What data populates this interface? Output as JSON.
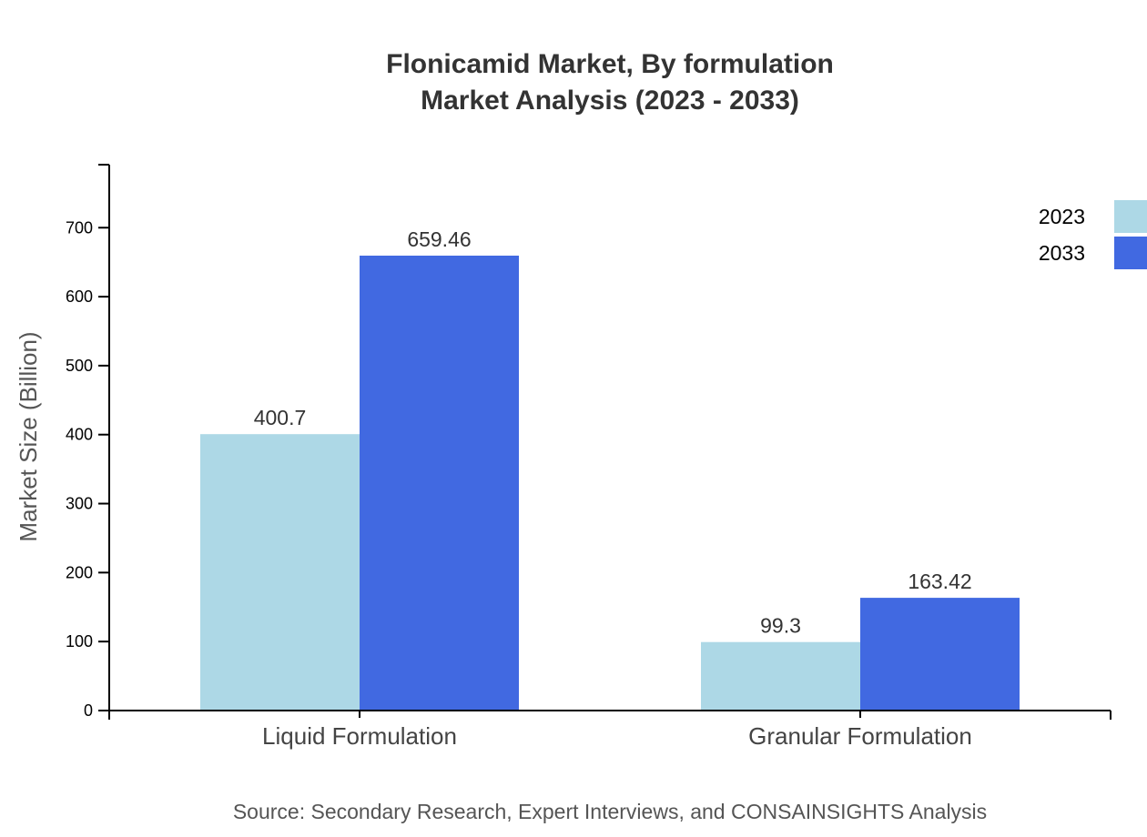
{
  "chart_data": {
    "type": "bar",
    "title": "Flonicamid Market, By formulation",
    "subtitle": "Market Analysis (2023 - 2033)",
    "xlabel": "",
    "ylabel": "Market Size (Billion)",
    "categories": [
      "Liquid Formulation",
      "Granular Formulation"
    ],
    "series": [
      {
        "name": "2023",
        "values": [
          400.7,
          99.3
        ],
        "color": "#add8e6"
      },
      {
        "name": "2033",
        "values": [
          659.46,
          163.42
        ],
        "color": "#4169e1"
      }
    ],
    "ylim": [
      0,
      791.35
    ],
    "yticks": [
      0,
      100,
      200,
      300,
      400,
      500,
      600,
      700
    ],
    "grid": false,
    "legend": "top-right",
    "source": "Source: Secondary Research, Expert Interviews, and CONSAINSIGHTS Analysis"
  }
}
